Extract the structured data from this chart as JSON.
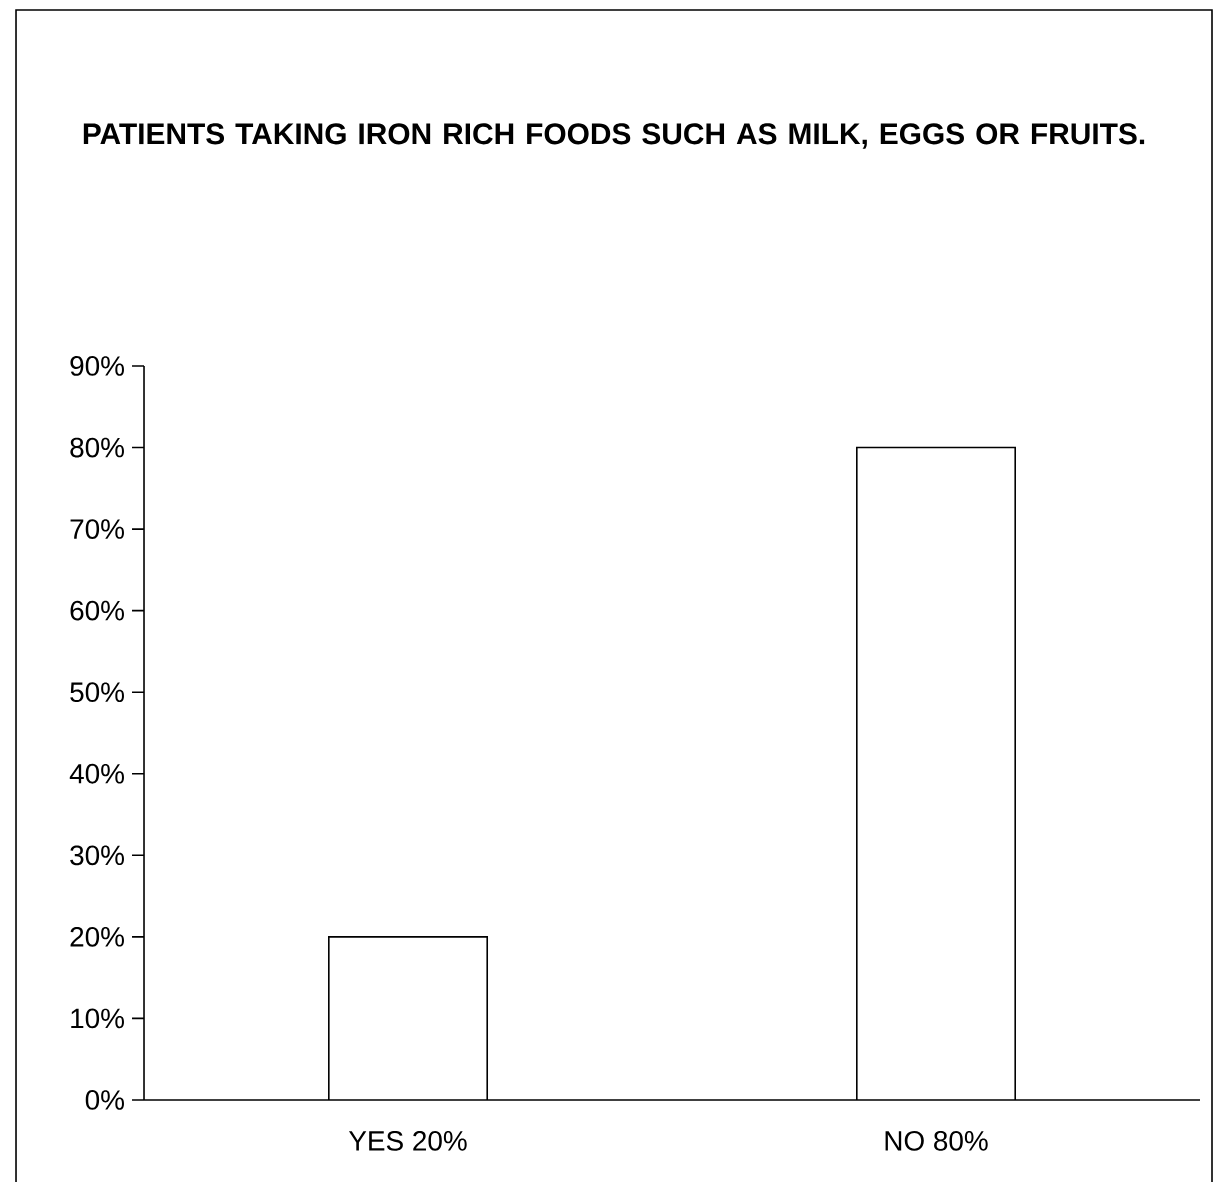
{
  "chart_data": {
    "type": "bar",
    "title": "PATIENTS TAKING IRON RICH FOODS SUCH AS MILK, EGGS OR FRUITS.",
    "categories": [
      "YES 20%",
      "NO 80%"
    ],
    "values": [
      20,
      80
    ],
    "color": "#ffffff",
    "ylim": [
      0,
      90
    ],
    "yticks": [
      {
        "value": 0,
        "label": "0%"
      },
      {
        "value": 10,
        "label": "10%"
      },
      {
        "value": 20,
        "label": "20%"
      },
      {
        "value": 30,
        "label": "30%"
      },
      {
        "value": 40,
        "label": "40%"
      },
      {
        "value": 50,
        "label": "50%"
      },
      {
        "value": 60,
        "label": "60%"
      },
      {
        "value": 70,
        "label": "70%"
      },
      {
        "value": 80,
        "label": "80%"
      },
      {
        "value": 90,
        "label": "90%"
      }
    ],
    "grid": false
  }
}
